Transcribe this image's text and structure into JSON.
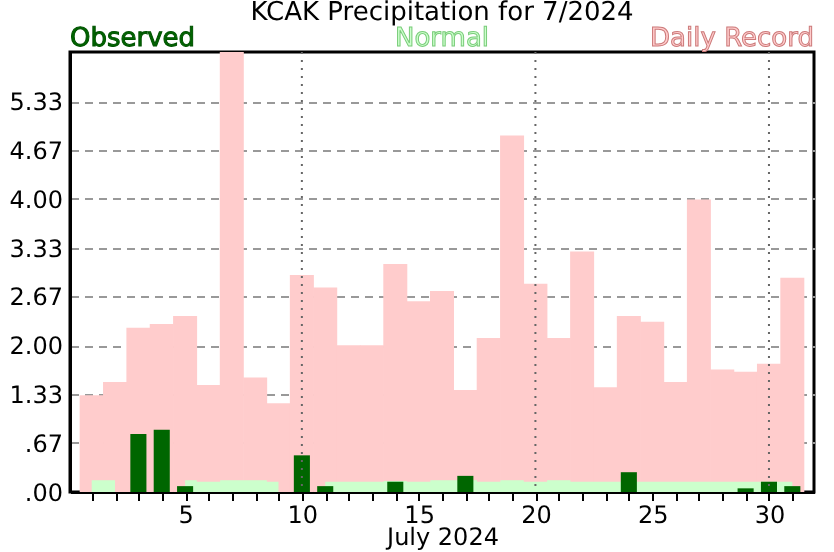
{
  "chart_data": {
    "type": "bar",
    "title": "KCAK Precipitation for 7/2024",
    "xlabel": "July 2024",
    "x": [
      1,
      2,
      3,
      4,
      5,
      6,
      7,
      8,
      9,
      10,
      11,
      12,
      13,
      14,
      15,
      16,
      17,
      18,
      19,
      20,
      21,
      22,
      23,
      24,
      25,
      26,
      27,
      28,
      29,
      30,
      31
    ],
    "series": [
      {
        "name": "Daily Record",
        "color": "#ffcccc",
        "values": [
          1.32,
          1.5,
          2.24,
          2.29,
          2.4,
          1.46,
          6.0,
          1.56,
          1.21,
          2.96,
          2.79,
          2.0,
          2.0,
          3.11,
          2.6,
          2.74,
          1.39,
          2.1,
          4.86,
          2.84,
          2.1,
          3.28,
          1.43,
          2.4,
          2.32,
          1.5,
          3.99,
          1.67,
          1.64,
          1.75,
          2.92
        ]
      },
      {
        "name": "Normal",
        "type": "area",
        "color": "#ccffcc",
        "values": [
          0.16,
          0.16,
          null,
          null,
          0.16,
          0.14,
          0.16,
          0.16,
          0.14,
          null,
          0.14,
          0.14,
          0.14,
          0.15,
          0.14,
          0.16,
          0.16,
          0.14,
          0.16,
          0.14,
          0.16,
          0.14,
          0.14,
          0.14,
          0.14,
          0.14,
          0.14,
          0.14,
          0.14,
          0.14,
          0.14
        ]
      },
      {
        "name": "Observed",
        "color": "#006600",
        "values": [
          0,
          0,
          0.79,
          0.85,
          0.08,
          0,
          0,
          0,
          0,
          0.5,
          0.08,
          0,
          0,
          0.14,
          0,
          0,
          0.22,
          0,
          0,
          0,
          0,
          0,
          0,
          0.27,
          0,
          0,
          0,
          0,
          0.05,
          0.14,
          0.08
        ]
      }
    ],
    "xlim": [
      0.5,
      31.5
    ],
    "xticks": [
      {
        "value": 1,
        "label": null
      },
      {
        "value": 2,
        "label": null
      },
      {
        "value": 3,
        "label": null
      },
      {
        "value": 4,
        "label": null
      },
      5,
      {
        "value": 6,
        "label": null
      },
      {
        "value": 7,
        "label": null
      },
      {
        "value": 8,
        "label": null
      },
      {
        "value": 9,
        "label": null
      },
      10,
      {
        "value": 11,
        "label": null
      },
      {
        "value": 12,
        "label": null
      },
      {
        "value": 13,
        "label": null
      },
      {
        "value": 14,
        "label": null
      },
      15,
      {
        "value": 16,
        "label": null
      },
      {
        "value": 17,
        "label": null
      },
      {
        "value": 18,
        "label": null
      },
      {
        "value": 19,
        "label": null
      },
      20,
      {
        "value": 21,
        "label": null
      },
      {
        "value": 22,
        "label": null
      },
      {
        "value": 23,
        "label": null
      },
      {
        "value": 24,
        "label": null
      },
      25,
      {
        "value": 26,
        "label": null
      },
      {
        "value": 27,
        "label": null
      },
      {
        "value": 28,
        "label": null
      },
      {
        "value": 29,
        "label": null
      },
      30,
      {
        "value": 31,
        "label": null
      }
    ],
    "ylim": [
      0,
      6
    ],
    "yticks": [
      {
        "value": 0,
        "label": ".00"
      },
      {
        "value": 0.67,
        "label": ".67"
      },
      {
        "value": 1.33,
        "label": "1.33"
      },
      {
        "value": 2,
        "label": "2.00"
      },
      {
        "value": 2.67,
        "label": "2.67"
      },
      {
        "value": 3.33,
        "label": "3.33"
      },
      {
        "value": 4,
        "label": "4.00"
      },
      {
        "value": 4.67,
        "label": "4.67"
      },
      {
        "value": 5.33,
        "label": "5.33"
      }
    ],
    "grid": "y",
    "legend": "top",
    "ref_lines": [
      {
        "axis": "x",
        "value": 10,
        "line_style": "dotted",
        "color": "#666666"
      },
      {
        "axis": "x",
        "value": 20,
        "line_style": "dotted",
        "color": "#666666"
      },
      {
        "axis": "x",
        "value": 30,
        "line_style": "dotted",
        "color": "#666666"
      }
    ]
  }
}
